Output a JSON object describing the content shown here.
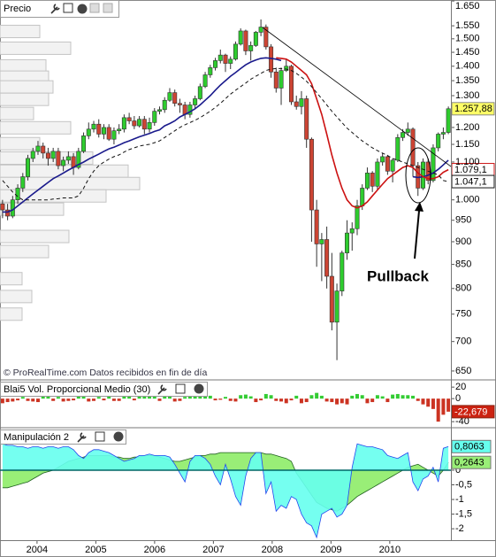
{
  "chart_data": [
    {
      "type": "candlestick",
      "title": "Precio",
      "log_scale": true,
      "ylim": [
        637,
        1654
      ],
      "yticks": [
        {
          "value": 1650,
          "label": "1.650"
        },
        {
          "value": 1550,
          "label": "1.550"
        },
        {
          "value": 1500,
          "label": "1.500"
        },
        {
          "value": 1450,
          "label": "1.450"
        },
        {
          "value": 1400,
          "label": "1.400"
        },
        {
          "value": 1350,
          "label": "1.350"
        },
        {
          "value": 1300,
          "label": "1.300"
        },
        {
          "value": 1200,
          "label": "1.200"
        },
        {
          "value": 1150,
          "label": "1.150"
        },
        {
          "value": 1100,
          "label": "1.100"
        },
        {
          "value": 1000,
          "label": "1.000"
        },
        950,
        900,
        850,
        800,
        750,
        700,
        650
      ],
      "xlim": [
        2003.37,
        2011.04
      ],
      "xticks": [
        2004,
        2005,
        2006,
        2007,
        2008,
        2009,
        2010
      ],
      "up_color": "#2ecc2e",
      "down_color": "#cc4433",
      "open": [
        990,
        975,
        960,
        1000,
        1030,
        1060,
        1110,
        1130,
        1145,
        1125,
        1110,
        1130,
        1090,
        1105,
        1115,
        1085,
        1130,
        1175,
        1195,
        1210,
        1180,
        1200,
        1165,
        1190,
        1195,
        1230,
        1220,
        1205,
        1225,
        1195,
        1215,
        1250,
        1255,
        1285,
        1310,
        1275,
        1270,
        1240,
        1270,
        1290,
        1330,
        1370,
        1395,
        1420,
        1440,
        1410,
        1425,
        1480,
        1530,
        1455,
        1475,
        1525,
        1545,
        1470,
        1380,
        1325,
        1385,
        1400,
        1280,
        1265,
        1290,
        1165,
        975,
        895,
        905,
        825,
        735,
        795,
        875,
        920,
        930,
        985,
        1030,
        1070,
        1035,
        1100,
        1115,
        1075,
        1105,
        1170,
        1185,
        1195,
        1090,
        1030,
        1100,
        1050,
        1140,
        1180,
        1185
      ],
      "high": [
        1000,
        990,
        1010,
        1040,
        1070,
        1120,
        1140,
        1160,
        1155,
        1140,
        1140,
        1140,
        1115,
        1130,
        1125,
        1140,
        1185,
        1215,
        1220,
        1225,
        1210,
        1210,
        1200,
        1210,
        1240,
        1245,
        1235,
        1235,
        1235,
        1230,
        1260,
        1265,
        1295,
        1325,
        1320,
        1290,
        1280,
        1280,
        1300,
        1340,
        1380,
        1405,
        1430,
        1460,
        1445,
        1435,
        1490,
        1540,
        1535,
        1490,
        1530,
        1575,
        1555,
        1480,
        1395,
        1395,
        1425,
        1405,
        1300,
        1315,
        1300,
        1170,
        1000,
        920,
        935,
        875,
        810,
        880,
        950,
        945,
        1000,
        1040,
        1085,
        1075,
        1110,
        1125,
        1120,
        1110,
        1180,
        1195,
        1215,
        1200,
        1100,
        1110,
        1110,
        1150,
        1185,
        1200,
        1265
      ],
      "low": [
        955,
        950,
        955,
        990,
        1020,
        1050,
        1100,
        1120,
        1110,
        1090,
        1100,
        1080,
        1075,
        1095,
        1065,
        1080,
        1125,
        1165,
        1185,
        1170,
        1165,
        1160,
        1150,
        1180,
        1185,
        1210,
        1195,
        1200,
        1180,
        1185,
        1205,
        1240,
        1245,
        1280,
        1265,
        1245,
        1225,
        1230,
        1260,
        1285,
        1325,
        1360,
        1385,
        1410,
        1380,
        1390,
        1420,
        1475,
        1440,
        1420,
        1470,
        1510,
        1460,
        1360,
        1310,
        1270,
        1380,
        1270,
        1255,
        1240,
        1140,
        900,
        845,
        815,
        800,
        720,
        668,
        785,
        860,
        880,
        915,
        975,
        1025,
        1020,
        1025,
        1090,
        1065,
        1045,
        1100,
        1160,
        1175,
        1060,
        1010,
        1025,
        1040,
        1045,
        1130,
        1165,
        1180
      ],
      "close": [
        975,
        960,
        1000,
        1030,
        1060,
        1110,
        1130,
        1145,
        1125,
        1110,
        1130,
        1090,
        1105,
        1115,
        1085,
        1130,
        1175,
        1195,
        1210,
        1180,
        1200,
        1165,
        1190,
        1195,
        1230,
        1220,
        1205,
        1225,
        1195,
        1215,
        1250,
        1255,
        1285,
        1310,
        1275,
        1270,
        1240,
        1270,
        1290,
        1330,
        1370,
        1395,
        1420,
        1440,
        1410,
        1425,
        1480,
        1530,
        1455,
        1475,
        1525,
        1545,
        1470,
        1380,
        1325,
        1385,
        1400,
        1280,
        1265,
        1290,
        1165,
        975,
        895,
        905,
        825,
        735,
        795,
        875,
        920,
        930,
        985,
        1030,
        1070,
        1035,
        1100,
        1115,
        1075,
        1105,
        1170,
        1185,
        1195,
        1090,
        1030,
        1100,
        1050,
        1140,
        1180,
        1185,
        1257.88
      ],
      "last_label": "1.257,88",
      "lines": [
        {
          "color": "#1a1a8c",
          "values": [
            970,
            970,
            975,
            985,
            995,
            1005,
            1015,
            1025,
            1035,
            1045,
            1055,
            1062,
            1070,
            1078,
            1085,
            1093,
            1100,
            1108,
            1115,
            1122,
            1130,
            1137,
            1142,
            1148,
            1155,
            1160,
            1166,
            1172,
            1177,
            1182,
            1188,
            1193,
            1205,
            1212,
            1220,
            1232,
            1240,
            1248,
            1258,
            1270,
            1285,
            1300,
            1318,
            1335,
            1350,
            1365,
            1378,
            1392,
            1405,
            1415,
            1422,
            1428,
            1430,
            1428,
            1425,
            1420,
            null,
            null,
            null,
            null,
            null,
            null,
            null,
            null,
            null,
            null,
            null,
            null,
            null,
            null,
            null,
            null,
            null,
            null,
            null,
            null,
            null,
            null,
            null,
            null,
            null,
            1060,
            1058,
            1060,
            1064,
            1070,
            1080,
            1092,
            1105
          ]
        },
        {
          "color": "#cc1111",
          "values": [
            null,
            null,
            null,
            null,
            null,
            null,
            null,
            null,
            null,
            null,
            null,
            null,
            null,
            null,
            null,
            null,
            null,
            null,
            null,
            null,
            null,
            null,
            null,
            null,
            null,
            null,
            null,
            null,
            null,
            null,
            null,
            null,
            null,
            null,
            null,
            null,
            null,
            null,
            null,
            null,
            null,
            null,
            null,
            null,
            null,
            null,
            null,
            null,
            null,
            null,
            null,
            null,
            null,
            null,
            1430,
            1428,
            1425,
            1415,
            1400,
            1385,
            1370,
            1340,
            1290,
            1240,
            1180,
            1120,
            1070,
            1030,
            1000,
            985,
            980,
            985,
            995,
            1010,
            1025,
            1040,
            1055,
            1065,
            1075,
            1085,
            1090,
            1085,
            1070,
            1060,
            1055,
            1055,
            1060,
            1072,
            1079.1
          ],
          "last_label": "1.079,1"
        },
        {
          "color": "#111111",
          "dashed": true,
          "values": [
            1050,
            1035,
            1020,
            1008,
            1000,
            1000,
            1000,
            1000,
            1000,
            1000,
            1002,
            1003,
            1005,
            1005,
            1005,
            1010,
            1030,
            1055,
            1075,
            1090,
            1100,
            1108,
            1115,
            1120,
            1128,
            1135,
            1140,
            1145,
            1148,
            1150,
            1155,
            1160,
            1170,
            1180,
            1190,
            1200,
            1208,
            1215,
            1222,
            1230,
            1240,
            1250,
            1262,
            1275,
            1290,
            1305,
            1318,
            1330,
            1342,
            1355,
            1365,
            1375,
            1385,
            1390,
            1392,
            1392,
            1390,
            1385,
            1375,
            1362,
            1348,
            1330,
            1310,
            1290,
            1270,
            1250,
            1232,
            1215,
            1198,
            1185,
            1172,
            1160,
            1150,
            1140,
            1132,
            1125,
            1118,
            1110,
            1105,
            1100,
            1095,
            1090,
            1085,
            1080,
            1075,
            1070,
            1065,
            1050,
            1047.1
          ],
          "last_label": "1.047,1"
        }
      ],
      "volume_profile": {
        "levels": [
          1528,
          1465,
          1401,
          1362,
          1329,
          1288,
          1243,
          1199,
          1152,
          1111,
          1075,
          1042,
          1010,
          977,
          912,
          878,
          820,
          784,
          750
        ],
        "values": [
          45,
          80,
          52,
          55,
          60,
          55,
          38,
          80,
          45,
          105,
          145,
          158,
          120,
          72,
          78,
          55,
          25,
          36,
          25
        ]
      },
      "annotation": "Pullback",
      "source": "© ProRealTime.com  Datos recibidos en fin de día"
    },
    {
      "type": "bar",
      "title": "Blai5 Vol. Proporcional Medio (30)",
      "ylim": [
        -49,
        31
      ],
      "yticks": [
        20,
        0,
        -40
      ],
      "positive_color": "#33cc33",
      "negative_color": "#cc3322",
      "values": [
        -8,
        -6,
        -5,
        -3,
        3,
        -4,
        -5,
        -6,
        8,
        5,
        -4,
        3,
        -5,
        -4,
        -3,
        4,
        5,
        -5,
        -4,
        3,
        -3,
        5,
        -4,
        -4,
        5,
        6,
        -3,
        5,
        4,
        6,
        5,
        -4,
        6,
        4,
        -5,
        -4,
        3,
        5,
        6,
        6,
        7,
        5,
        -3,
        -2,
        3,
        -4,
        -5,
        6,
        7,
        4,
        -6,
        -3,
        8,
        6,
        -4,
        -5,
        -8,
        -3,
        5,
        -8,
        -6,
        6,
        10,
        5,
        -5,
        -6,
        -10,
        -8,
        -10,
        5,
        8,
        6,
        -8,
        -6,
        6,
        4,
        -6,
        7,
        8,
        6,
        6,
        5,
        -4,
        -10,
        -14,
        -18,
        -40,
        -28,
        -22.679
      ],
      "last_label": "-22,679"
    },
    {
      "type": "area",
      "title": "Manipulación 2",
      "ylim": [
        -2.39,
        1.42
      ],
      "yticks": [
        0,
        {
          "value": -0.5,
          "label": "-0,5"
        },
        -1,
        {
          "value": -1.5,
          "label": "-1,5"
        },
        -2
      ],
      "series": [
        {
          "color": "#99ee77",
          "line_color": "#1f5f1f",
          "values": [
            -0.6,
            -0.6,
            -0.55,
            -0.5,
            -0.45,
            -0.4,
            -0.3,
            -0.2,
            -0.1,
            -0.05,
            0,
            0.1,
            0.2,
            0.3,
            0.35,
            0.4,
            0.45,
            0.5,
            0.5,
            0.5,
            0.5,
            0.5,
            0.45,
            0.45,
            0.4,
            0.4,
            0.45,
            0.45,
            0.5,
            0.5,
            0.5,
            0.45,
            0.4,
            0.35,
            0.3,
            0.3,
            0.35,
            0.4,
            0.45,
            0.5,
            0.5,
            0.55,
            0.55,
            0.6,
            0.6,
            0.6,
            0.6,
            0.6,
            0.6,
            0.6,
            0.6,
            0.6,
            0.55,
            0.55,
            0.5,
            0.45,
            0.4,
            0.3,
            -0.1,
            -0.35,
            -0.6,
            -0.85,
            -1.1,
            -1.2,
            -1.3,
            -1.35,
            -1.4,
            -1.3,
            -1.2,
            -1.05,
            -0.9,
            -0.8,
            -0.7,
            -0.6,
            -0.5,
            -0.4,
            -0.3,
            -0.2,
            -0.1,
            0,
            0.1,
            0.15,
            0.2,
            0.1,
            0,
            -0.1,
            -0.2,
            0,
            0.2643
          ],
          "last_label": "0,2643"
        },
        {
          "color": "#66ffee",
          "line_color": "#2244ee",
          "values": [
            0.9,
            0.85,
            0.85,
            0.8,
            0.8,
            0.75,
            0.8,
            0.8,
            0.75,
            0.8,
            0.8,
            0.75,
            0.8,
            0.8,
            0.7,
            0.5,
            0.4,
            0.6,
            0.7,
            0.7,
            0.65,
            0.6,
            0.5,
            0.4,
            0.3,
            0.35,
            0.4,
            0.5,
            0.5,
            0.55,
            0.5,
            0.5,
            0.5,
            0.45,
            0.2,
            -0.1,
            -0.4,
            0.3,
            0.5,
            0.5,
            0.4,
            0.2,
            -0.2,
            -0.5,
            0.2,
            -0.3,
            -0.9,
            -1.2,
            -0.2,
            0.4,
            0.6,
            0.6,
            -0.8,
            -0.4,
            -1.4,
            -1.2,
            -1.3,
            -0.9,
            -1.0,
            -1.5,
            -1.8,
            -1.9,
            -2.3,
            -1.5,
            -1.4,
            -1.3,
            -1.6,
            -1.5,
            -1.2,
            0.1,
            0.9,
            0.85,
            0.8,
            0.8,
            0.75,
            0.7,
            0.5,
            0.45,
            0.4,
            0.5,
            0.6,
            -0.4,
            -0.7,
            -0.3,
            -0.2,
            0.1,
            -0.4,
            0.75,
            0.8063
          ],
          "last_label": "0,8063"
        }
      ]
    }
  ]
}
